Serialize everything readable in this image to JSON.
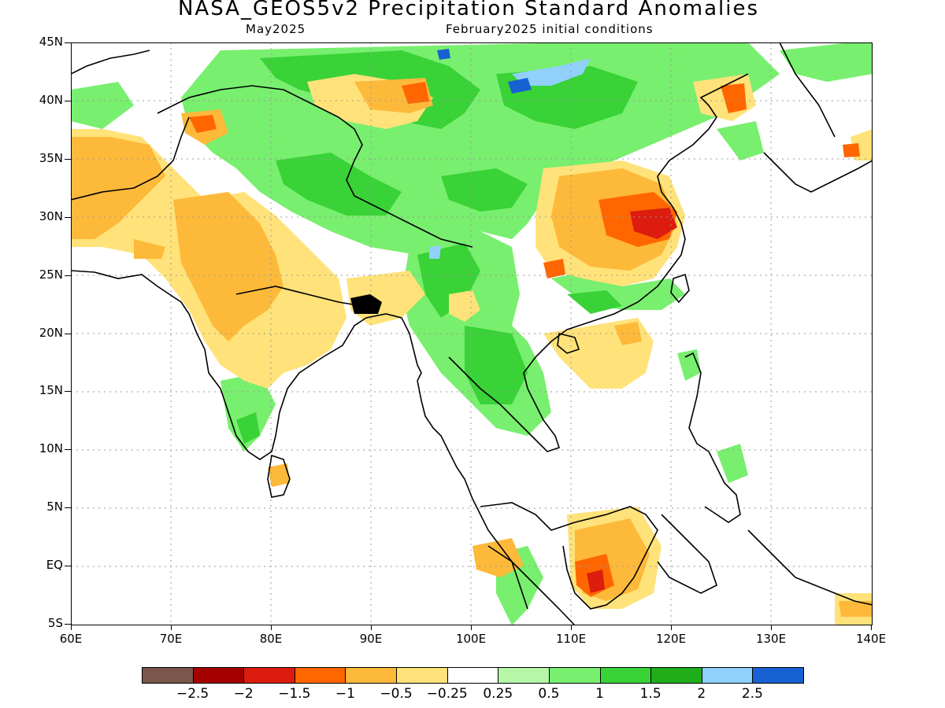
{
  "title": "NASA_GEOS5v2 Precipitation Standard Anomalies",
  "subtitle_left": "May2025",
  "subtitle_right": "February2025 initial conditions",
  "map": {
    "lon_range": [
      "60E",
      "140E"
    ],
    "lat_range": [
      "5S",
      "45N"
    ],
    "grid": "dotted",
    "y_ticks": [
      "45N",
      "40N",
      "35N",
      "30N",
      "25N",
      "20N",
      "15N",
      "10N",
      "5N",
      "EQ",
      "5S"
    ],
    "x_ticks": [
      "60E",
      "70E",
      "80E",
      "90E",
      "100E",
      "110E",
      "120E",
      "130E",
      "140E"
    ]
  },
  "colorbar": {
    "colors": [
      "#7a574a",
      "#a50000",
      "#dc1c0e",
      "#ff6600",
      "#fdb93a",
      "#ffe279",
      "#ffffff",
      "#b5f7a7",
      "#78ef6e",
      "#39d237",
      "#1fae19",
      "#90d0fb",
      "#1761d2"
    ],
    "labels": [
      "-2.5",
      "-2",
      "-1.5",
      "-1",
      "-0.5",
      "-0.25",
      "0.25",
      "0.5",
      "1",
      "1.5",
      "2",
      "2.5"
    ]
  },
  "palette": {
    "dry_light": "#ffe279",
    "dry": "#fdb93a",
    "dry_strong": "#ff6600",
    "dry_extreme": "#dc1c0e",
    "wet_light": "#b5f7a7",
    "wet": "#78ef6e",
    "wet_strong": "#39d237",
    "wet_extreme": "#1fae19",
    "very_wet": "#90d0fb",
    "extreme_wet": "#1761d2"
  }
}
